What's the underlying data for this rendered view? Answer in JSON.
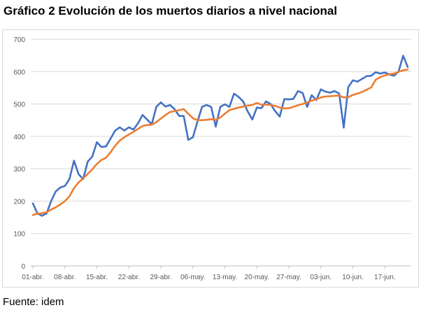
{
  "title": "Gráfico 2 Evolución de los muertos diarios a nivel nacional",
  "source": "Fuente: idem",
  "colors": {
    "daily": "#4472c4",
    "average": "#ed7d31",
    "grid": "#d9d9d9",
    "axis": "#bfbfbf",
    "tick": "#595959"
  },
  "chart_data": {
    "type": "line",
    "title": "",
    "xlabel": "",
    "ylabel": "",
    "ylim": [
      0,
      700
    ],
    "yticks": [
      0,
      100,
      200,
      300,
      400,
      500,
      600,
      700
    ],
    "grid": "horizontal",
    "legend": "none",
    "x_ticks": [
      "01-abr.",
      "08-abr.",
      "15-abr.",
      "22-abr.",
      "29-abr.",
      "06-may.",
      "13-may.",
      "20-may.",
      "27-may.",
      "03-jun.",
      "10-jun.",
      "17-jun."
    ],
    "series": [
      {
        "values": [
          193,
          162,
          155,
          162,
          200,
          230,
          242,
          247,
          268,
          325,
          283,
          268,
          322,
          338,
          382,
          367,
          369,
          393,
          418,
          428,
          418,
          428,
          421,
          440,
          466,
          452,
          437,
          491,
          505,
          492,
          497,
          484,
          463,
          463,
          389,
          397,
          445,
          491,
          497,
          491,
          430,
          491,
          499,
          491,
          532,
          522,
          508,
          477,
          452,
          489,
          487,
          508,
          500,
          478,
          461,
          515,
          514,
          516,
          540,
          534,
          491,
          527,
          512,
          545,
          538,
          535,
          540,
          532,
          427,
          552,
          573,
          569,
          577,
          586,
          587,
          598,
          594,
          597,
          591,
          587,
          600,
          649,
          614
        ]
      },
      {
        "values": [
          157,
          161,
          163,
          166,
          174,
          181,
          190,
          200,
          215,
          240,
          258,
          270,
          284,
          298,
          315,
          327,
          334,
          351,
          371,
          387,
          397,
          406,
          414,
          423,
          432,
          435,
          436,
          444,
          455,
          466,
          475,
          478,
          481,
          484,
          470,
          456,
          450,
          450,
          451,
          453,
          451,
          458,
          470,
          481,
          485,
          489,
          492,
          495,
          497,
          503,
          498,
          498,
          497,
          494,
          489,
          486,
          487,
          491,
          496,
          500,
          505,
          510,
          515,
          520,
          523,
          524,
          525,
          526,
          520,
          521,
          528,
          532,
          537,
          544,
          551,
          575,
          583,
          588,
          592,
          594,
          599,
          604,
          606
        ]
      }
    ]
  }
}
